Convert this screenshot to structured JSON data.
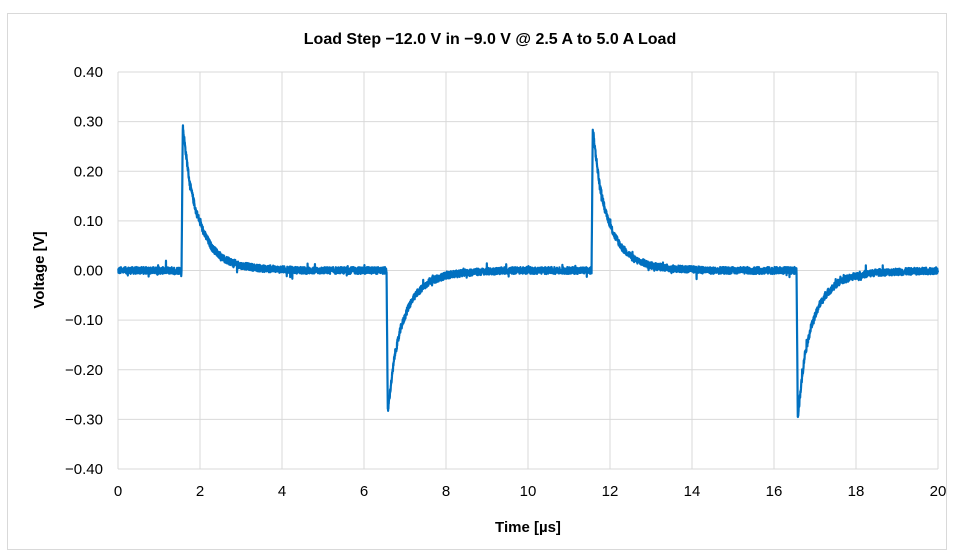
{
  "chart_data": {
    "type": "line",
    "title": "Load Step  −12.0 V in −9.0 V @ 2.5 A to 5.0 A Load",
    "xlabel": "Time [µs]",
    "ylabel": "Voltage [V]",
    "xlim": [
      0,
      20
    ],
    "ylim": [
      -0.4,
      0.4
    ],
    "x_ticks": [
      "0",
      "2",
      "4",
      "6",
      "8",
      "10",
      "12",
      "14",
      "16",
      "18",
      "20"
    ],
    "y_ticks": [
      "0.40",
      "0.30",
      "0.20",
      "0.10",
      "0.00",
      "−0.10",
      "−0.20",
      "−0.30",
      "−0.40"
    ],
    "grid": true,
    "color": "#0070c0",
    "series": [
      {
        "name": "",
        "points": [
          [
            0,
            0.0
          ],
          [
            1.55,
            0.0
          ],
          [
            1.58,
            0.29
          ],
          [
            1.65,
            0.24
          ],
          [
            1.75,
            0.175
          ],
          [
            1.9,
            0.12
          ],
          [
            2.1,
            0.075
          ],
          [
            2.3,
            0.045
          ],
          [
            2.6,
            0.022
          ],
          [
            3.0,
            0.01
          ],
          [
            3.5,
            0.004
          ],
          [
            4.5,
            0.0
          ],
          [
            6.55,
            0.0
          ],
          [
            6.58,
            -0.285
          ],
          [
            6.65,
            -0.235
          ],
          [
            6.75,
            -0.17
          ],
          [
            6.9,
            -0.115
          ],
          [
            7.1,
            -0.07
          ],
          [
            7.3,
            -0.045
          ],
          [
            7.6,
            -0.022
          ],
          [
            8.0,
            -0.01
          ],
          [
            8.5,
            -0.004
          ],
          [
            9.5,
            0.0
          ],
          [
            11.55,
            0.0
          ],
          [
            11.58,
            0.285
          ],
          [
            11.65,
            0.235
          ],
          [
            11.75,
            0.17
          ],
          [
            11.9,
            0.115
          ],
          [
            12.1,
            0.072
          ],
          [
            12.3,
            0.045
          ],
          [
            12.6,
            0.022
          ],
          [
            13.0,
            0.01
          ],
          [
            13.5,
            0.004
          ],
          [
            14.5,
            0.0
          ],
          [
            16.55,
            0.0
          ],
          [
            16.58,
            -0.295
          ],
          [
            16.65,
            -0.24
          ],
          [
            16.75,
            -0.17
          ],
          [
            16.9,
            -0.115
          ],
          [
            17.1,
            -0.07
          ],
          [
            17.3,
            -0.045
          ],
          [
            17.6,
            -0.022
          ],
          [
            18.0,
            -0.01
          ],
          [
            18.5,
            -0.004
          ],
          [
            20.0,
            0.0
          ]
        ]
      }
    ]
  }
}
